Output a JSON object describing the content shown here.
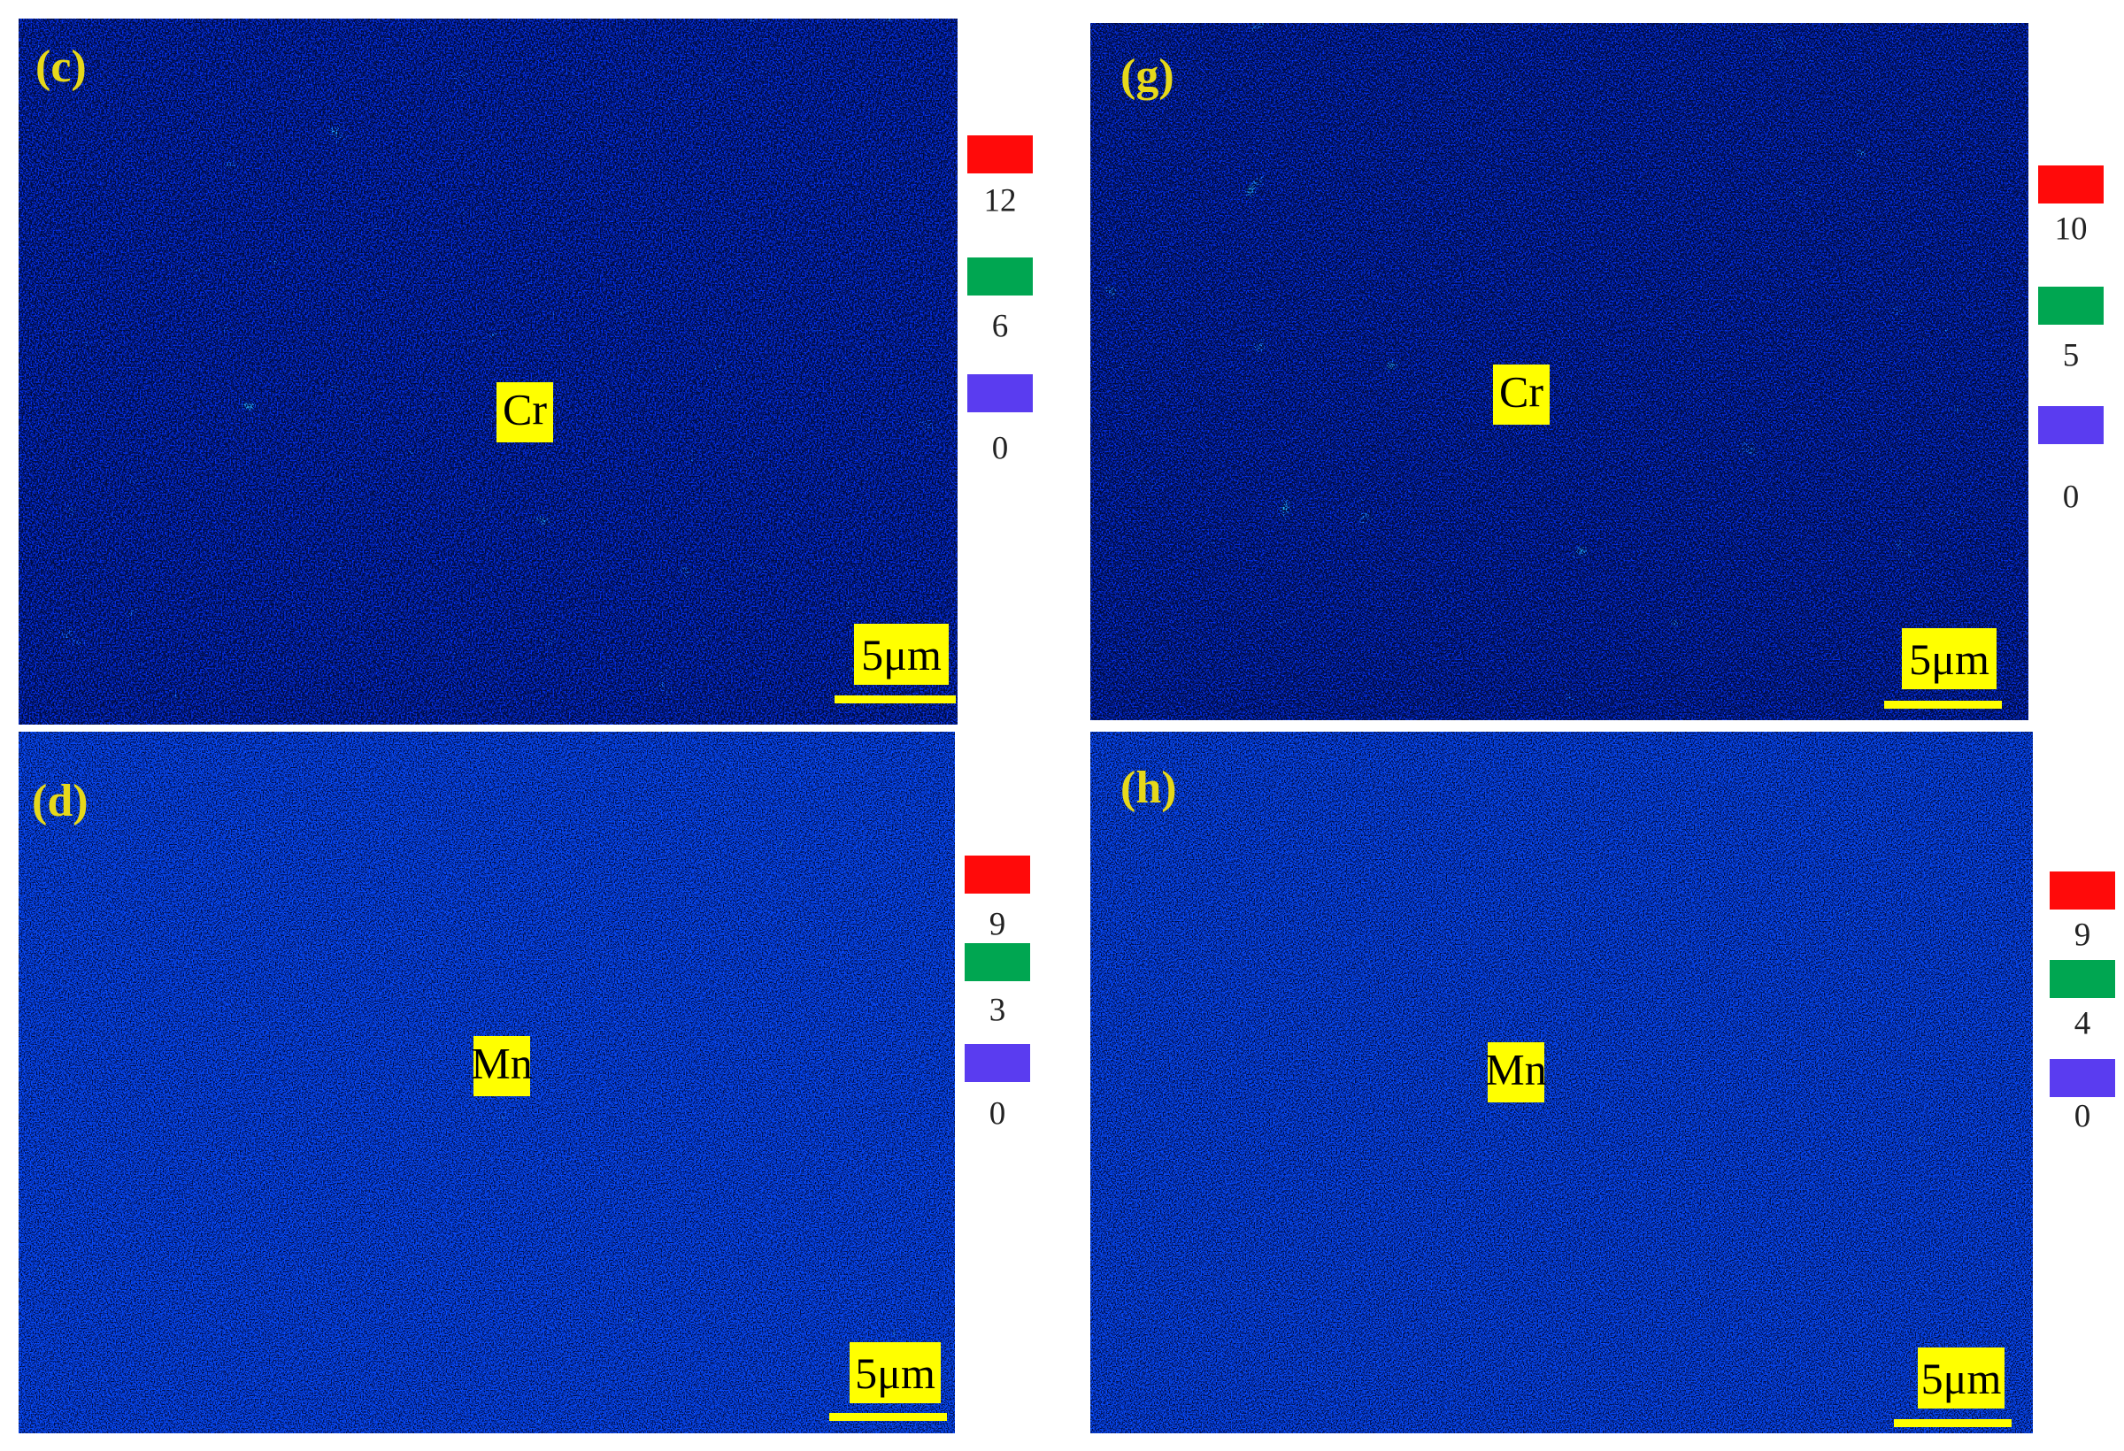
{
  "panels": [
    {
      "label": "(c)",
      "element": "Cr",
      "scale_bar": "5μm",
      "color_scale": [
        12,
        6,
        0
      ]
    },
    {
      "label": "(g)",
      "element": "Cr",
      "scale_bar": "5μm",
      "color_scale": [
        10,
        5,
        0
      ]
    },
    {
      "label": "(d)",
      "element": "Mn",
      "scale_bar": "5μm",
      "color_scale": [
        9,
        3,
        0
      ]
    },
    {
      "label": "(h)",
      "element": "Mn",
      "scale_bar": "5μm",
      "color_scale": [
        9,
        4,
        0
      ]
    }
  ]
}
